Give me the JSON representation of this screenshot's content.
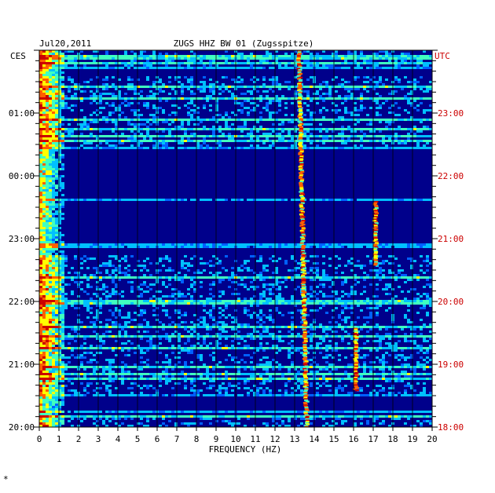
{
  "header": {
    "date": "Jul20,2011",
    "title": "ZUGS HHZ BW 01 (Zugsspitze)",
    "left_tz": "CES",
    "right_tz": "UTC"
  },
  "footer_mark": "*",
  "colors": {
    "left_labels": "#000000",
    "right_labels": "#cc0000",
    "background": "#00008b",
    "scale": [
      "#000080",
      "#0000ff",
      "#0060ff",
      "#00c0ff",
      "#40ffbf",
      "#ffff00",
      "#ff6000",
      "#cc0000"
    ]
  },
  "chart_data": {
    "type": "heatmap",
    "title": "ZUGS HHZ BW 01 (Zugsspitze)",
    "xlabel": "FREQUENCY (HZ)",
    "ylabel": "",
    "xlim": [
      0,
      20
    ],
    "x_ticks": [
      0,
      1,
      2,
      3,
      4,
      5,
      6,
      7,
      8,
      9,
      10,
      11,
      12,
      13,
      14,
      15,
      16,
      17,
      18,
      19,
      20
    ],
    "y_ticks_left": [
      "01:00",
      "00:00",
      "23:00",
      "22:00",
      "21:00",
      "20:00"
    ],
    "y_ticks_right": [
      "23:00",
      "22:00",
      "21:00",
      "20:00",
      "19:00",
      "18:00"
    ],
    "time_range_utc_hours": [
      18,
      24
    ],
    "grid": true,
    "features": [
      {
        "kind": "persistent_line",
        "freq_start_hz": 13.2,
        "freq_end_hz": 13.6,
        "t_start_utc": 18.0,
        "t_end_utc": 24.0
      },
      {
        "kind": "low_freq_noise",
        "freq_range_hz": [
          0,
          1.2
        ],
        "t_start_utc": 18.0,
        "t_end_utc": 24.0
      },
      {
        "kind": "transient_line",
        "freq_hz": 17.1,
        "t_start_utc": 20.6,
        "t_end_utc": 21.6
      },
      {
        "kind": "transient_line",
        "freq_hz": 16.1,
        "t_start_utc": 18.6,
        "t_end_utc": 19.6
      }
    ]
  }
}
